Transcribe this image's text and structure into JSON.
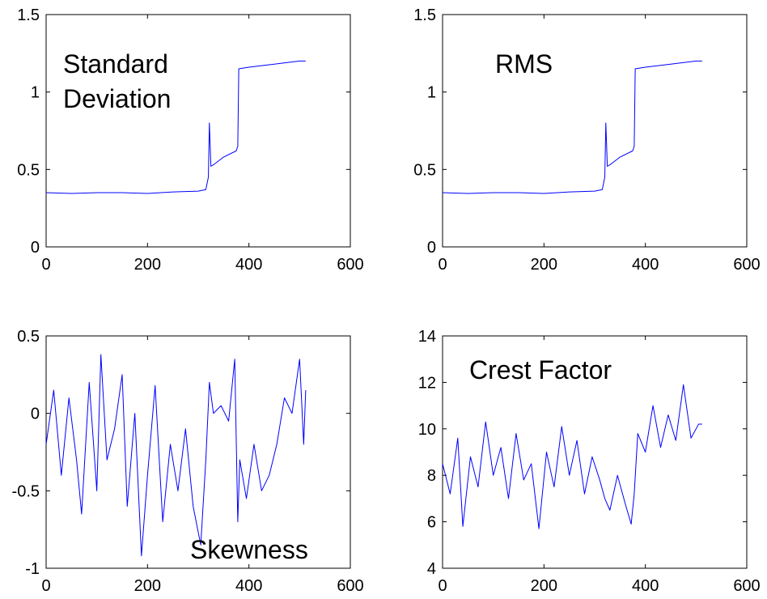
{
  "chart_data": [
    {
      "type": "line",
      "annotation": [
        "Standard",
        "Deviation"
      ],
      "xlim": [
        0,
        600
      ],
      "ylim": [
        0,
        1.5
      ],
      "xticks": [
        0,
        200,
        400,
        600
      ],
      "yticks": [
        0,
        0.5,
        1,
        1.5
      ],
      "xtick_labels": [
        "0",
        "200",
        "400",
        "600"
      ],
      "ytick_labels": [
        "0",
        "0.5",
        "1",
        "1.5"
      ],
      "grid": false,
      "series_color": "#0000ff",
      "series": [
        {
          "x": [
            0,
            50,
            100,
            150,
            200,
            250,
            300,
            315,
            320,
            322,
            325,
            330,
            350,
            375,
            378,
            380,
            400,
            450,
            500,
            512
          ],
          "y": [
            0.35,
            0.345,
            0.35,
            0.35,
            0.345,
            0.355,
            0.36,
            0.37,
            0.45,
            0.8,
            0.52,
            0.53,
            0.58,
            0.62,
            0.65,
            1.15,
            1.16,
            1.18,
            1.2,
            1.2
          ]
        }
      ]
    },
    {
      "type": "line",
      "annotation": [
        "RMS"
      ],
      "xlim": [
        0,
        600
      ],
      "ylim": [
        0,
        1.5
      ],
      "xticks": [
        0,
        200,
        400,
        600
      ],
      "yticks": [
        0,
        0.5,
        1,
        1.5
      ],
      "xtick_labels": [
        "0",
        "200",
        "400",
        "600"
      ],
      "ytick_labels": [
        "0",
        "0.5",
        "1",
        "1.5"
      ],
      "grid": false,
      "series_color": "#0000ff",
      "series": [
        {
          "x": [
            0,
            50,
            100,
            150,
            200,
            250,
            300,
            315,
            320,
            322,
            325,
            330,
            350,
            375,
            378,
            380,
            400,
            450,
            500,
            512
          ],
          "y": [
            0.35,
            0.345,
            0.35,
            0.35,
            0.345,
            0.355,
            0.36,
            0.37,
            0.45,
            0.8,
            0.52,
            0.53,
            0.58,
            0.62,
            0.65,
            1.15,
            1.16,
            1.18,
            1.2,
            1.2
          ]
        }
      ]
    },
    {
      "type": "line",
      "annotation": [
        "Skewness"
      ],
      "xlim": [
        0,
        600
      ],
      "ylim": [
        -1,
        0.5
      ],
      "xticks": [
        0,
        200,
        400,
        600
      ],
      "yticks": [
        -1,
        -0.5,
        0,
        0.5
      ],
      "xtick_labels": [
        "0",
        "200",
        "400",
        "600"
      ],
      "ytick_labels": [
        "-1",
        "-0.5",
        "0",
        "0.5"
      ],
      "grid": false,
      "series_color": "#0000ff",
      "series": [
        {
          "x": [
            0,
            15,
            30,
            45,
            60,
            70,
            85,
            100,
            108,
            120,
            135,
            150,
            160,
            175,
            188,
            200,
            215,
            230,
            245,
            260,
            275,
            290,
            305,
            315,
            322,
            330,
            345,
            360,
            372,
            378,
            382,
            395,
            410,
            425,
            440,
            455,
            470,
            485,
            500,
            508,
            512
          ],
          "y": [
            -0.2,
            0.15,
            -0.4,
            0.1,
            -0.3,
            -0.65,
            0.2,
            -0.5,
            0.38,
            -0.3,
            -0.1,
            0.25,
            -0.6,
            0.0,
            -0.92,
            -0.4,
            0.18,
            -0.7,
            -0.2,
            -0.5,
            -0.1,
            -0.6,
            -0.85,
            -0.3,
            0.2,
            0.0,
            0.05,
            -0.05,
            0.35,
            -0.7,
            -0.3,
            -0.55,
            -0.2,
            -0.5,
            -0.4,
            -0.2,
            0.1,
            0.0,
            0.35,
            -0.2,
            0.15
          ]
        }
      ]
    },
    {
      "type": "line",
      "annotation": [
        "Crest Factor"
      ],
      "xlim": [
        0,
        600
      ],
      "ylim": [
        4,
        14
      ],
      "xticks": [
        0,
        200,
        400,
        600
      ],
      "yticks": [
        4,
        6,
        8,
        10,
        12,
        14
      ],
      "xtick_labels": [
        "0",
        "200",
        "400",
        "600"
      ],
      "ytick_labels": [
        "4",
        "6",
        "8",
        "10",
        "12",
        "14"
      ],
      "grid": false,
      "series_color": "#0000ff",
      "series": [
        {
          "x": [
            0,
            15,
            30,
            40,
            55,
            70,
            85,
            100,
            115,
            130,
            145,
            160,
            175,
            190,
            205,
            220,
            235,
            250,
            265,
            280,
            295,
            310,
            320,
            330,
            345,
            360,
            372,
            378,
            385,
            400,
            415,
            430,
            445,
            460,
            475,
            490,
            505,
            512
          ],
          "y": [
            8.5,
            7.2,
            9.6,
            5.8,
            8.8,
            7.5,
            10.3,
            8.0,
            9.2,
            7.0,
            9.8,
            7.8,
            8.5,
            5.7,
            9.0,
            7.5,
            10.1,
            8.0,
            9.5,
            7.2,
            8.8,
            7.8,
            7.0,
            6.5,
            8.0,
            6.8,
            5.9,
            7.2,
            9.8,
            9.0,
            11.0,
            9.2,
            10.6,
            9.5,
            11.9,
            9.6,
            10.2,
            10.2
          ]
        }
      ]
    }
  ]
}
